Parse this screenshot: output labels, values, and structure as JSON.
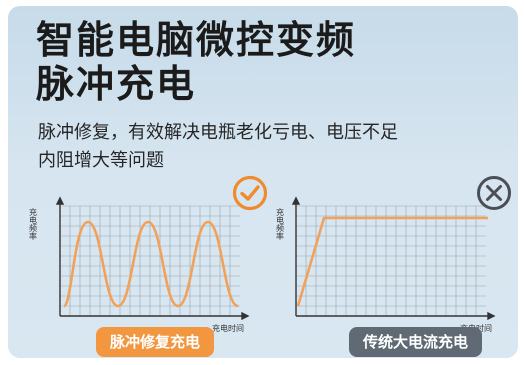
{
  "title": {
    "line1": "智能电脑微控变频",
    "line2": "脉冲充电"
  },
  "description": {
    "line1": "脉冲修复，有效解决电瓶老化亏电、电压不足",
    "line2": "内阻增大等问题"
  },
  "left_chart": {
    "ylabel": "充电频率",
    "xlabel": "充电时间",
    "badge": "脉冲修复充电",
    "status_icon": "check-circle-icon",
    "line_color": "#f2a15a",
    "badge_color": "#f2963f"
  },
  "right_chart": {
    "ylabel": "充电频率",
    "xlabel": "充电时间",
    "badge": "传统大电流充电",
    "status_icon": "x-circle-icon",
    "line_color": "#f2a15a",
    "badge_color": "#5f6a75"
  }
}
